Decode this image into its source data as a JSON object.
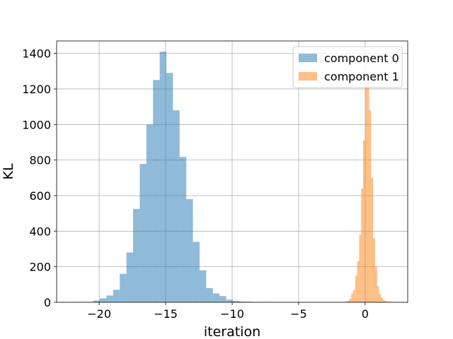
{
  "chart_data": {
    "type": "bar",
    "xlabel": "iteration",
    "ylabel": "KL",
    "xlim": [
      -23.2,
      3.2
    ],
    "ylim": [
      0,
      1470
    ],
    "xticks": [
      -20,
      -15,
      -10,
      -5,
      0
    ],
    "xtick_labels": [
      "−20",
      "−15",
      "−10",
      "−5",
      "0"
    ],
    "yticks": [
      0,
      200,
      400,
      600,
      800,
      1000,
      1200,
      1400
    ],
    "ytick_labels": [
      "0",
      "200",
      "400",
      "600",
      "800",
      "1000",
      "1200",
      "1400"
    ],
    "grid": true,
    "legend_position": "upper-right",
    "series": [
      {
        "name": "component 0",
        "color": "#1f77b4",
        "alpha": 0.5,
        "bin_edges": [
          -21.95,
          -21.45,
          -20.95,
          -20.45,
          -19.95,
          -19.45,
          -18.95,
          -18.45,
          -17.95,
          -17.45,
          -16.95,
          -16.45,
          -15.95,
          -15.45,
          -14.95,
          -14.45,
          -13.95,
          -13.45,
          -12.95,
          -12.45,
          -11.95,
          -11.45,
          -10.95,
          -10.45,
          -9.95,
          -9.45,
          -8.95,
          -8.45,
          -7.95,
          -7.45,
          -6.95,
          -6.45
        ],
        "values": [
          2,
          1,
          2,
          10,
          22,
          38,
          70,
          160,
          280,
          525,
          778,
          1000,
          1250,
          1410,
          1290,
          1080,
          818,
          580,
          340,
          180,
          80,
          50,
          35,
          15,
          8,
          4,
          3,
          2,
          1,
          1,
          0
        ]
      },
      {
        "name": "component 1",
        "color": "#ff7f0e",
        "alpha": 0.5,
        "bin_edges": [
          -1.5,
          -1.35,
          -1.2,
          -1.05,
          -0.9,
          -0.75,
          -0.6,
          -0.45,
          -0.3,
          -0.15,
          0.0,
          0.15,
          0.3,
          0.45,
          0.6,
          0.75,
          0.9,
          1.05,
          1.2,
          1.35,
          1.5,
          1.65,
          1.8,
          1.95,
          2.1
        ],
        "values": [
          4,
          8,
          20,
          48,
          70,
          150,
          230,
          380,
          640,
          910,
          1220,
          1240,
          1080,
          700,
          360,
          200,
          90,
          45,
          25,
          12,
          7,
          4,
          2,
          1
        ]
      }
    ]
  }
}
